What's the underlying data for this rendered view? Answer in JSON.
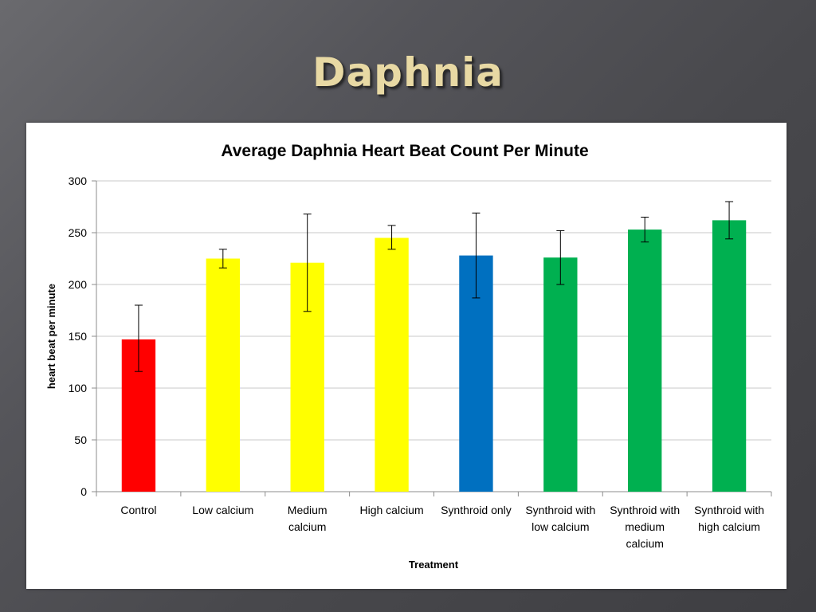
{
  "slide": {
    "title": "Daphnia"
  },
  "chart_data": {
    "type": "bar",
    "title": "Average Daphnia Heart Beat Count Per Minute",
    "xlabel": "Treatment",
    "ylabel": "heart beat per minute",
    "ylim": [
      0,
      300
    ],
    "yticks": [
      0,
      50,
      100,
      150,
      200,
      250,
      300
    ],
    "grid": true,
    "categories": [
      "Control",
      "Low calcium",
      "Medium calcium",
      "High calcium",
      "Synthroid only",
      "Synthroid with low calcium",
      "Synthroid with medium calcium",
      "Synthroid with high calcium"
    ],
    "category_label_lines": [
      [
        "Control"
      ],
      [
        "Low calcium"
      ],
      [
        "Medium",
        "calcium"
      ],
      [
        "High calcium"
      ],
      [
        "Synthroid only"
      ],
      [
        "Synthroid with",
        "low calcium"
      ],
      [
        "Synthroid with",
        "medium",
        "calcium"
      ],
      [
        "Synthroid with",
        "high calcium"
      ]
    ],
    "values": [
      147,
      225,
      221,
      245,
      228,
      226,
      253,
      262
    ],
    "error_low": [
      116,
      216,
      174,
      234,
      187,
      200,
      241,
      244
    ],
    "error_high": [
      180,
      234,
      268,
      257,
      269,
      252,
      265,
      280
    ],
    "colors": [
      "#ff0000",
      "#ffff00",
      "#ffff00",
      "#ffff00",
      "#0070c0",
      "#00b050",
      "#00b050",
      "#00b050"
    ]
  }
}
